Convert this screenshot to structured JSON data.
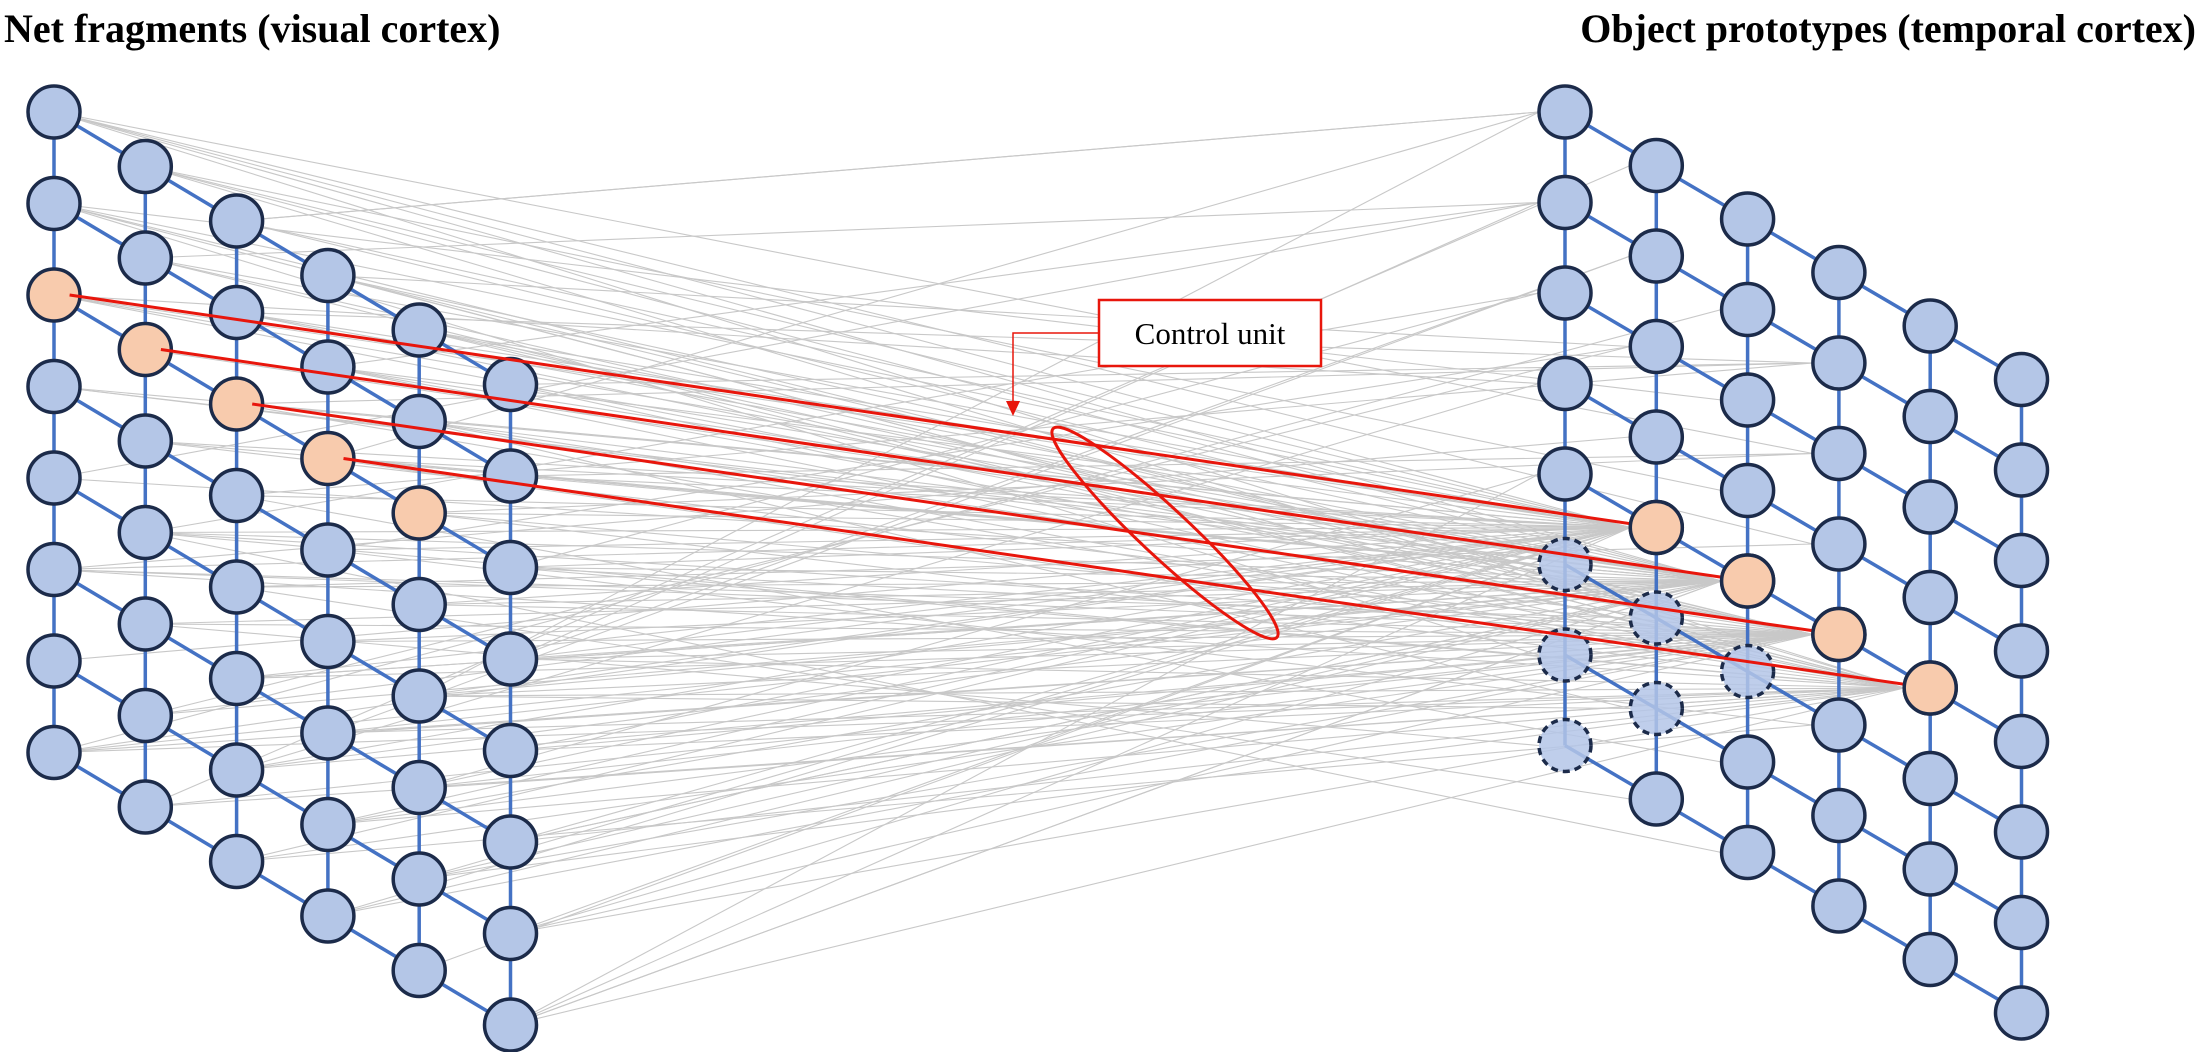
{
  "titles": {
    "left": "Net fragments (visual cortex)",
    "right": "Object prototypes (temporal cortex)"
  },
  "callout": {
    "label": "Control unit"
  },
  "colors": {
    "node_fill": "#b4c6e7",
    "node_stroke": "#1c2b4a",
    "edge": "#4472c4",
    "highlight_fill": "#f8cbad",
    "connection": "#c8c8c8",
    "active_connection": "#e8160c"
  },
  "left_grid": {
    "columns": 6,
    "nodes_per_column": 8,
    "highlighted": [
      [
        0,
        2
      ],
      [
        1,
        2
      ],
      [
        2,
        2
      ],
      [
        3,
        2
      ],
      [
        4,
        2
      ]
    ]
  },
  "right_grid": {
    "columns": 6,
    "nodes_per_column": 8,
    "highlighted": [
      [
        1,
        4
      ],
      [
        2,
        4
      ],
      [
        3,
        4
      ],
      [
        4,
        4
      ]
    ],
    "dashed": [
      [
        0,
        5
      ],
      [
        0,
        6
      ],
      [
        0,
        7
      ],
      [
        1,
        5
      ],
      [
        1,
        6
      ],
      [
        2,
        5
      ]
    ]
  }
}
